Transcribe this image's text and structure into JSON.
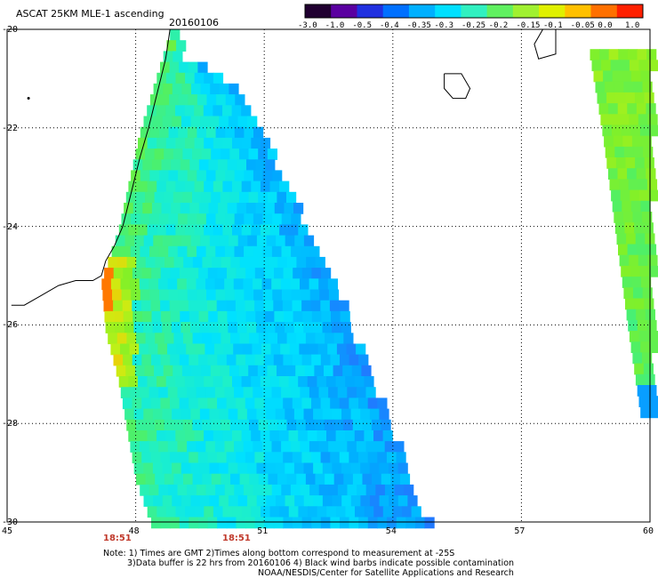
{
  "chart_data": {
    "type": "heatmap",
    "title": "ASCAT 25KM MLE-1 ascending",
    "date": "20160106",
    "x_range": [
      45,
      60
    ],
    "y_range": [
      -30,
      -20
    ],
    "x_ticks": [
      "45",
      "48",
      "51",
      "54",
      "57",
      "60"
    ],
    "y_ticks": [
      "-20",
      "-22",
      "-24",
      "-26",
      "-28",
      "-30"
    ],
    "grid": true,
    "colorbar": {
      "labels": [
        "-3.0",
        "-1.0",
        "-0.5",
        "-0.4",
        "-0.35",
        "-0.3",
        "-0.25",
        "-0.2",
        "-0.15",
        "-0.1",
        "-0.05",
        "0.0",
        "1.0"
      ],
      "colors": [
        "#200030",
        "#5a00a0",
        "#2030e0",
        "#0070ff",
        "#00b0ff",
        "#00e0ff",
        "#30f0c0",
        "#60f060",
        "#a0f030",
        "#e0f000",
        "#ffc000",
        "#ff7000",
        "#ff2000"
      ]
    },
    "swath_main_value_range": [
      -0.4,
      -0.1
    ],
    "coastal_high_value": 0.0,
    "time_labels": [
      "18:51",
      "18:51"
    ],
    "notes": [
      "Note: 1) Times are GMT 2)Times along bottom correspond to measurement at -25S",
      "3)Data buffer is 22 hrs from 20160106 4) Black wind barbs indicate possible contamination",
      "NOAA/NESDIS/Center for Satellite Applications and Research"
    ]
  }
}
